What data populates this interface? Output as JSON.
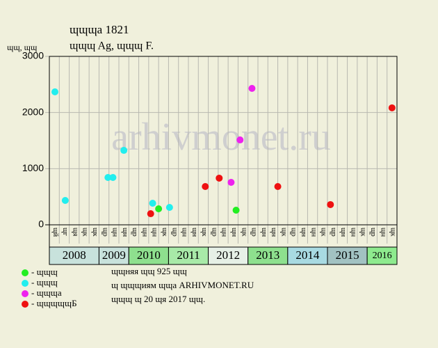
{
  "chart_data": {
    "type": "scatter",
    "title": "ɰɰɰа 1821",
    "subtitle": "ɰɰɰ Ag, ɰɰɰ F.",
    "y_label": "ɰɰ, ɰɰ",
    "watermark": "arhivmonet.ru",
    "ylim": [
      0,
      3000
    ],
    "yticks": [
      0,
      1000,
      2000,
      3000
    ],
    "xlim": [
      0,
      35
    ],
    "slots": [
      "ɰй",
      "ɰг",
      "ɰя",
      "ɰк",
      "ɰк",
      "ɰр",
      "ɰн",
      "ɰн",
      "ɰр",
      "ɰн",
      "ɰн",
      "ɰк",
      "ɰр",
      "ɰн",
      "ɰн",
      "ɰк",
      "ɰр",
      "ɰн",
      "ɰн",
      "ɰк",
      "ɰр",
      "ɰн",
      "ɰн",
      "ɰк",
      "ɰр",
      "ɰн",
      "ɰн",
      "ɰк",
      "ɰр",
      "ɰн",
      "ɰн",
      "ɰк",
      "ɰр",
      "ɰн",
      "ɰк"
    ],
    "years": [
      {
        "label": "2008",
        "span": 5,
        "color": "#c8e2dc"
      },
      {
        "label": "2009",
        "span": 3,
        "color": "#c8e2dc"
      },
      {
        "label": "2010",
        "span": 4,
        "color": "#8ee08e"
      },
      {
        "label": "2011",
        "span": 4,
        "color": "#a8eaa8"
      },
      {
        "label": "2012",
        "span": 4,
        "color": "#e6f0e6"
      },
      {
        "label": "2013",
        "span": 4,
        "color": "#8ee08e"
      },
      {
        "label": "2014",
        "span": 4,
        "color": "#a8dae2"
      },
      {
        "label": "2015",
        "span": 4,
        "color": "#a2c2c2"
      },
      {
        "label": "2016",
        "span": 3,
        "color": "#8eea8e"
      }
    ],
    "series": [
      {
        "name": "- ɰɰɰ",
        "color": "#22ee22",
        "x": [
          11.0,
          18.8
        ],
        "values": [
          285,
          260
        ]
      },
      {
        "name": "- ɰɰɰ",
        "color": "#22eeee",
        "x": [
          0.56,
          1.6,
          5.9,
          6.4,
          7.5,
          10.4,
          12.1
        ],
        "values": [
          2368,
          434,
          843,
          843,
          1326,
          384,
          310
        ]
      },
      {
        "name": "- ɰɰɰа",
        "color": "#ee22ee",
        "x": [
          18.3,
          19.2,
          20.4
        ],
        "values": [
          756,
          1512,
          2430
        ]
      },
      {
        "name": "- ɰɰɰɰɰБ",
        "color": "#ee1111",
        "x": [
          10.2,
          15.7,
          17.1,
          23.0,
          28.3,
          34.5
        ],
        "values": [
          198,
          682,
          831,
          682,
          360,
          2083
        ]
      }
    ],
    "notes": [
      "ɰɰняя ɰɰ 925 ɰɰ",
      "ɰ ɰɰɰиям ɰɰа ARHIVMONET.RU",
      "ɰɰɰ ɰ 20 ɰя 2017 ɰɰ."
    ]
  }
}
